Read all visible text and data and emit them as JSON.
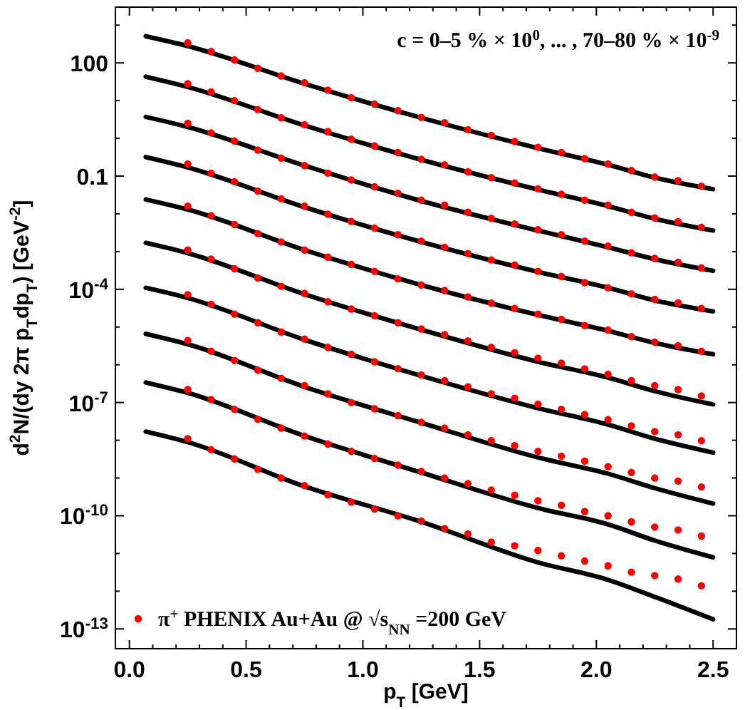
{
  "chart_data": {
    "type": "scatter",
    "xlabel": "p$_{T}$ [GeV]",
    "ylabel": "d$^{2}$N/(dy 2π p$_{T}$dp$_{T}$) [GeV$^{-2}$]",
    "annotations": [
      "c = 0–5 % × 10$^{0}$, ... , 70–80 % × 10$^{-9}$"
    ],
    "log": "y",
    "legend": "bottom left",
    "marker": "circle",
    "line_style": "solid",
    "xlim": [
      -0.06,
      2.6
    ],
    "ylim": [
      3e-14,
      3000
    ],
    "xticks": [
      {
        "value": 0,
        "label": "0.0"
      },
      {
        "value": 0.1,
        "label": null
      },
      {
        "value": 0.2,
        "label": null
      },
      {
        "value": 0.3,
        "label": null
      },
      {
        "value": 0.4,
        "label": null
      },
      {
        "value": 0.5,
        "label": "0.5"
      },
      {
        "value": 0.6,
        "label": null
      },
      {
        "value": 0.7,
        "label": null
      },
      {
        "value": 0.8,
        "label": null
      },
      {
        "value": 0.9,
        "label": null
      },
      {
        "value": 1,
        "label": "1.0"
      },
      {
        "value": 1.1,
        "label": null
      },
      {
        "value": 1.2,
        "label": null
      },
      {
        "value": 1.3,
        "label": null
      },
      {
        "value": 1.4,
        "label": null
      },
      {
        "value": 1.5,
        "label": "1.5"
      },
      {
        "value": 1.6,
        "label": null
      },
      {
        "value": 1.7,
        "label": null
      },
      {
        "value": 1.8,
        "label": null
      },
      {
        "value": 1.9,
        "label": null
      },
      {
        "value": 2,
        "label": "2.0"
      },
      {
        "value": 2.1,
        "label": null
      },
      {
        "value": 2.2,
        "label": null
      },
      {
        "value": 2.3,
        "label": null
      },
      {
        "value": 2.4,
        "label": null
      },
      {
        "value": 2.5,
        "label": "2.5"
      }
    ],
    "yticks": [
      {
        "value": 1e-13,
        "label": "10$^{-13}$"
      },
      {
        "value": 1e-12,
        "label": null
      },
      {
        "value": 1e-11,
        "label": null
      },
      {
        "value": 1e-10,
        "label": "10$^{-10}$"
      },
      {
        "value": 1e-09,
        "label": null
      },
      {
        "value": 1e-08,
        "label": null
      },
      {
        "value": 1e-07,
        "label": "10$^{-7}$"
      },
      {
        "value": 1e-06,
        "label": null
      },
      {
        "value": 1e-05,
        "label": null
      },
      {
        "value": 0.0001,
        "label": "10$^{-4}$"
      },
      {
        "value": 0.001,
        "label": null
      },
      {
        "value": 0.01,
        "label": null
      },
      {
        "value": 0.1,
        "label": "0.1"
      },
      {
        "value": 1,
        "label": null
      },
      {
        "value": 10,
        "label": null
      },
      {
        "value": 100,
        "label": "100"
      },
      {
        "value": 1000,
        "label": null
      }
    ],
    "x": [
      0.25,
      0.35,
      0.45,
      0.55,
      0.65,
      0.75,
      0.85,
      0.95,
      1.05,
      1.15,
      1.25,
      1.35,
      1.45,
      1.55,
      1.65,
      1.75,
      1.85,
      1.95,
      2.05,
      2.15,
      2.25,
      2.35,
      2.45
    ],
    "series": [
      {
        "name": "π$^{+}$ PHENIX Au+Au @ √s$_{NN}$ =200 GeV",
        "color": "#ff0000",
        "values": [
          340,
          200,
          120,
          72,
          45,
          30,
          19,
          12,
          8.1,
          5.4,
          3.6,
          2.6,
          1.7,
          1.2,
          0.83,
          0.58,
          0.42,
          0.29,
          0.21,
          0.14,
          0.095,
          0.076,
          0.054
        ]
      },
      {
        "color": "#ff0000",
        "values": [
          28,
          17,
          10,
          5.8,
          3.5,
          2.3,
          1.5,
          0.95,
          0.63,
          0.42,
          0.28,
          0.2,
          0.13,
          0.091,
          0.066,
          0.046,
          0.033,
          0.023,
          0.017,
          0.011,
          0.0078,
          0.0062,
          0.0044
        ]
      },
      {
        "color": "#ff0000",
        "values": [
          2.5,
          1.4,
          0.85,
          0.49,
          0.3,
          0.19,
          0.12,
          0.079,
          0.052,
          0.035,
          0.023,
          0.017,
          0.011,
          0.0076,
          0.0054,
          0.0038,
          0.0028,
          0.0019,
          0.0014,
          0.00093,
          0.00066,
          0.00052,
          0.00037
        ]
      },
      {
        "color": "#ff0000",
        "values": [
          0.21,
          0.12,
          0.071,
          0.04,
          0.025,
          0.016,
          0.0098,
          0.0063,
          0.0042,
          0.0028,
          0.0019,
          0.0013,
          0.00089,
          0.0006,
          0.00044,
          0.0003,
          0.00022,
          0.00015,
          0.00011,
          7.6e-05,
          5.4e-05,
          4.4e-05,
          3.1e-05
        ]
      },
      {
        "color": "#ff0000",
        "values": [
          0.016,
          0.0089,
          0.0052,
          0.003,
          0.0018,
          0.0011,
          0.00071,
          0.00046,
          0.0003,
          0.00019,
          0.00013,
          9.3e-05,
          6.3e-05,
          4.3e-05,
          3.1e-05,
          2.2e-05,
          1.6e-05,
          1.1e-05,
          8.3e-06,
          5.6e-06,
          4e-06,
          3.2e-06,
          2.3e-06
        ]
      },
      {
        "color": "#ff0000",
        "values": [
          0.0011,
          0.00063,
          0.00035,
          0.0002,
          0.00012,
          7.8e-05,
          4.7e-05,
          3e-05,
          2e-05,
          1.3e-05,
          8.9e-06,
          6.3e-06,
          4.3e-06,
          2.9e-06,
          2.1e-06,
          1.5e-06,
          1.1e-06,
          7.8e-07,
          5.6e-07,
          3.8e-07,
          2.8e-07,
          2.2e-07,
          1.5e-07
        ]
      },
      {
        "color": "#ff0000",
        "values": [
          7.2e-05,
          4e-05,
          2.2e-05,
          1.3e-05,
          7.4e-06,
          4.8e-06,
          2.9e-06,
          1.9e-06,
          1.2e-06,
          7.9e-07,
          5.4e-07,
          3.8e-07,
          2.6e-07,
          1.7e-07,
          1.3e-07,
          9.1e-08,
          6.6e-08,
          4.8e-08,
          3.5e-08,
          2.4e-08,
          1.7e-08,
          1.4e-08,
          9.8e-09
        ]
      },
      {
        "color": "#ff0000",
        "values": [
          4.4e-06,
          2.3e-06,
          1.3e-06,
          7.2e-07,
          4.4e-07,
          2.8e-07,
          1.7e-07,
          1e-07,
          6.8e-08,
          4.5e-08,
          3e-08,
          2.1e-08,
          1.4e-08,
          9.8e-09,
          7.2e-09,
          5.1e-09,
          3.8e-09,
          2.8e-09,
          2e-09,
          1.4e-09,
          1e-09,
          8.3e-10,
          5.8e-10
        ]
      },
      {
        "color": "#ff0000",
        "values": [
          2.2e-07,
          1.2e-07,
          6.6e-08,
          3.6e-08,
          2.1e-08,
          1.3e-08,
          7.9e-09,
          5.1e-09,
          3.3e-09,
          2.2e-09,
          1.5e-09,
          1e-09,
          7.1e-10,
          4.8e-10,
          3.5e-10,
          2.5e-10,
          1.9e-10,
          1.3e-10,
          1e-10,
          6.9e-11,
          5e-11,
          4.2e-11,
          2.9e-11
        ]
      },
      {
        "color": "#ff0000",
        "values": [
          1.1e-08,
          5.6e-09,
          3.2e-09,
          1.7e-09,
          1e-09,
          6.3e-10,
          3.6e-10,
          2.3e-10,
          1.5e-10,
          1e-10,
          7.2e-11,
          4.6e-11,
          3.3e-11,
          2e-11,
          1.6e-11,
          1.2e-11,
          8.7e-12,
          6.3e-12,
          4.7e-12,
          3.2e-12,
          2.6e-12,
          2.1e-12,
          1.4e-12
        ]
      },
      {
        "type": "line",
        "marker": "none",
        "color": "#000000",
        "x": [
          0.07,
          0.25,
          0.75,
          1.25,
          1.75,
          2.05,
          2.25,
          2.5
        ],
        "values": [
          510,
          280,
          28,
          3.5,
          0.55,
          0.2,
          0.091,
          0.045
        ]
      },
      {
        "type": "line",
        "color": "#000000",
        "x": [
          0.07,
          0.25,
          0.75,
          1.25,
          1.75,
          2.05,
          2.25,
          2.5
        ],
        "marker": "none",
        "values": [
          43,
          23,
          2.2,
          0.27,
          0.044,
          0.016,
          0.0074,
          0.0036
        ]
      },
      {
        "type": "line",
        "color": "#000000",
        "x": [
          0.07,
          0.25,
          0.75,
          1.25,
          1.75,
          2.05,
          2.25,
          2.5
        ],
        "marker": "none",
        "values": [
          3.7,
          2,
          0.19,
          0.022,
          0.0036,
          0.0013,
          0.00063,
          0.00031
        ]
      },
      {
        "type": "line",
        "color": "#000000",
        "x": [
          0.07,
          0.25,
          0.75,
          1.25,
          1.75,
          2.05,
          2.25,
          2.5
        ],
        "marker": "none",
        "values": [
          0.32,
          0.17,
          0.015,
          0.0018,
          0.00029,
          0.00011,
          5.1e-05,
          2.6e-05
        ]
      },
      {
        "type": "line",
        "color": "#000000",
        "x": [
          0.07,
          0.25,
          0.75,
          1.25,
          1.75,
          2.05,
          2.25,
          2.5
        ],
        "marker": "none",
        "values": [
          0.024,
          0.013,
          0.0011,
          0.00013,
          2.1e-05,
          7.9e-06,
          3.8e-06,
          1.9e-06
        ]
      },
      {
        "type": "line",
        "color": "#000000",
        "x": [
          0.07,
          0.25,
          0.75,
          1.25,
          1.75,
          2.05,
          2.25,
          2.5
        ],
        "marker": "none",
        "values": [
          0.0017,
          0.00091,
          7.4e-05,
          8.5e-06,
          1.2e-06,
          4.6e-07,
          2e-07,
          8.9e-08
        ]
      },
      {
        "type": "line",
        "color": "#000000",
        "x": [
          0.07,
          0.25,
          0.75,
          1.25,
          1.75,
          2.05,
          2.25,
          2.5
        ],
        "marker": "none",
        "values": [
          0.00011,
          5.9e-05,
          4.6e-06,
          5.1e-07,
          7.1e-08,
          2.6e-08,
          1.1e-08,
          4.7e-09
        ]
      },
      {
        "type": "line",
        "color": "#000000",
        "x": [
          0.07,
          0.25,
          0.75,
          1.25,
          1.75,
          2.05,
          2.25,
          2.5
        ],
        "marker": "none",
        "values": [
          6.6e-06,
          3.5e-06,
          2.6e-07,
          2.9e-08,
          3.5e-09,
          1.3e-09,
          5.4e-10,
          2.1e-10
        ]
      },
      {
        "type": "line",
        "color": "#000000",
        "x": [
          0.07,
          0.25,
          0.75,
          1.25,
          1.75,
          2.05,
          2.25,
          2.5
        ],
        "marker": "none",
        "values": [
          3.4e-07,
          1.8e-07,
          1.3e-08,
          1.4e-09,
          1.6e-10,
          5.9e-11,
          2.2e-11,
          7.9e-12
        ]
      },
      {
        "type": "line",
        "color": "#000000",
        "x": [
          0.07,
          0.25,
          0.75,
          1.25,
          1.75,
          2.05,
          2.25,
          2.5
        ],
        "marker": "none",
        "values": [
          1.7e-08,
          8.9e-09,
          6e-10,
          6.9e-11,
          5.8e-12,
          2e-12,
          7.1e-13,
          1.8e-13
        ]
      }
    ]
  }
}
